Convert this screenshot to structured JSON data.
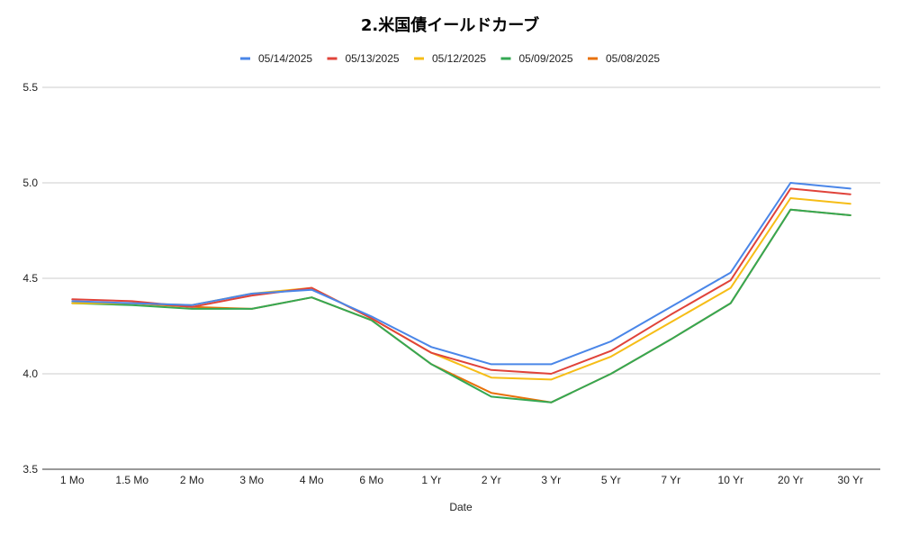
{
  "chart_data": {
    "type": "line",
    "title": "2.米国債イールドカーブ",
    "xlabel": "Date",
    "ylabel": "",
    "categories": [
      "1 Mo",
      "1.5 Mo",
      "2 Mo",
      "3 Mo",
      "4 Mo",
      "6 Mo",
      "1 Yr",
      "2 Yr",
      "3 Yr",
      "5 Yr",
      "7 Yr",
      "10 Yr",
      "20 Yr",
      "30 Yr"
    ],
    "ylim": [
      3.5,
      5.5
    ],
    "yticks": [
      "3.5",
      "4.0",
      "4.5",
      "5.0",
      "5.5"
    ],
    "grid": true,
    "legend_position": "top",
    "series": [
      {
        "name": "05/14/2025",
        "color": "#4a86e8",
        "values": [
          4.38,
          4.37,
          4.36,
          4.42,
          4.44,
          4.3,
          4.14,
          4.05,
          4.05,
          4.17,
          4.35,
          4.53,
          5.0,
          4.97
        ]
      },
      {
        "name": "05/13/2025",
        "color": "#e0433a",
        "values": [
          4.39,
          4.38,
          4.35,
          4.41,
          4.45,
          4.29,
          4.11,
          4.02,
          4.0,
          4.12,
          4.31,
          4.49,
          4.97,
          4.94
        ]
      },
      {
        "name": "05/12/2025",
        "color": "#f6bd16",
        "values": [
          4.37,
          4.37,
          4.36,
          4.42,
          4.45,
          4.29,
          4.11,
          3.98,
          3.97,
          4.09,
          4.27,
          4.45,
          4.92,
          4.89
        ]
      },
      {
        "name": "05/09/2025",
        "color": "#34a853",
        "values": [
          4.37,
          4.36,
          4.34,
          4.34,
          4.4,
          4.28,
          4.05,
          3.88,
          3.85,
          4.0,
          4.18,
          4.37,
          4.86,
          4.83
        ]
      },
      {
        "name": "05/08/2025",
        "color": "#e8710a",
        "values": [
          4.37,
          4.37,
          4.35,
          4.34,
          4.4,
          4.28,
          4.05,
          3.9,
          3.85,
          4.0,
          4.18,
          4.37,
          4.86,
          4.83
        ]
      }
    ]
  }
}
